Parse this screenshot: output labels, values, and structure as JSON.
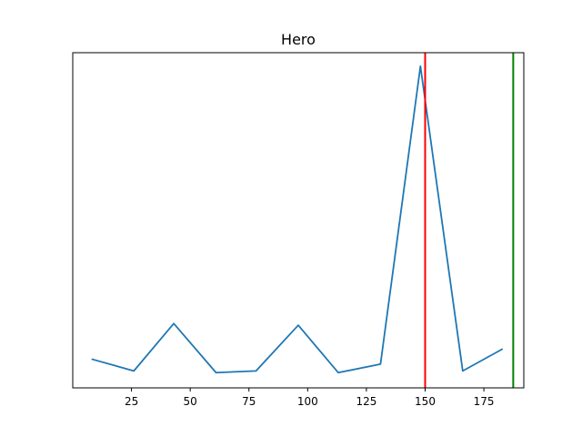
{
  "chart_data": {
    "type": "line",
    "title": "Hero",
    "xlabel": "",
    "ylabel": "",
    "xlim": [
      0,
      192
    ],
    "ylim": [
      0.4,
      10.3
    ],
    "xticks": [
      25,
      50,
      75,
      100,
      125,
      150,
      175
    ],
    "yticks": [],
    "grid": false,
    "series": [
      {
        "color": "#1f77b4",
        "x": [
          8,
          26,
          43,
          61,
          78,
          96,
          113,
          131,
          148,
          166,
          183
        ],
        "y": [
          1.25,
          0.9,
          2.3,
          0.85,
          0.9,
          2.25,
          0.85,
          1.1,
          9.9,
          0.9,
          1.55
        ]
      }
    ],
    "vlines": [
      {
        "x": 150,
        "color": "#ff0000"
      },
      {
        "x": 187.5,
        "color": "#008000"
      }
    ]
  }
}
